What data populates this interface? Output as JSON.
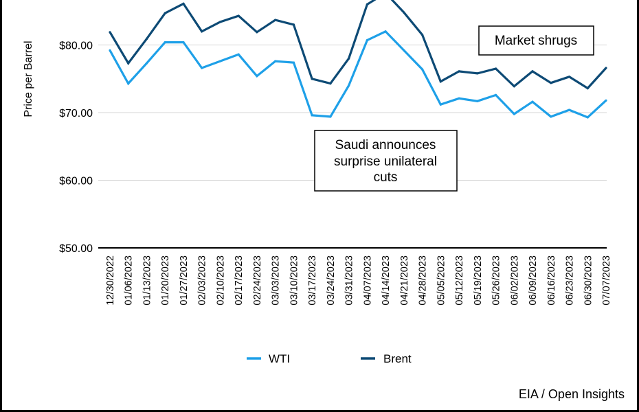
{
  "chart_data": {
    "type": "line",
    "title": "",
    "xlabel": "",
    "ylabel": "Price per Barrel",
    "ylim": [
      50,
      80
    ],
    "yticks": [
      "$50.00",
      "$60.00",
      "$70.00",
      "$80.00"
    ],
    "ytick_values": [
      50,
      60,
      70,
      80
    ],
    "grid": true,
    "legend_position": "bottom",
    "categories": [
      "12/30/2022",
      "01/06/2023",
      "01/13/2023",
      "01/20/2023",
      "01/27/2023",
      "02/03/2023",
      "02/10/2023",
      "02/17/2023",
      "02/24/2023",
      "03/03/2023",
      "03/10/2023",
      "03/17/2023",
      "03/24/2023",
      "03/31/2023",
      "04/07/2023",
      "04/14/2023",
      "04/21/2023",
      "04/28/2023",
      "05/05/2023",
      "05/12/2023",
      "05/19/2023",
      "05/26/2023",
      "06/02/2023",
      "06/09/2023",
      "06/16/2023",
      "06/23/2023",
      "06/30/2023",
      "07/07/2023"
    ],
    "series": [
      {
        "name": "WTI",
        "color": "#1ea0e8",
        "values": [
          79.2,
          74.3,
          77.3,
          80.4,
          80.4,
          76.6,
          77.6,
          78.6,
          75.4,
          77.6,
          77.4,
          69.6,
          69.4,
          74.0,
          80.7,
          82.0,
          79.2,
          76.4,
          71.2,
          72.1,
          71.7,
          72.6,
          69.8,
          71.6,
          69.4,
          70.4,
          69.3,
          71.8
        ]
      },
      {
        "name": "Brent",
        "color": "#0d4a75",
        "values": [
          81.9,
          77.3,
          80.9,
          84.7,
          86.1,
          82.0,
          83.4,
          84.3,
          81.9,
          83.7,
          83.0,
          75.0,
          74.3,
          78.0,
          86.0,
          87.7,
          84.8,
          81.5,
          74.6,
          76.1,
          75.8,
          76.5,
          73.9,
          76.1,
          74.4,
          75.3,
          73.6,
          76.6
        ]
      }
    ],
    "annotations": [
      "Market shrugs",
      "Saudi announces surprise unilateral cuts"
    ],
    "source": "EIA / Open Insights"
  },
  "annotation_market": "Market shrugs",
  "annotation_saudi_lines": [
    "Saudi announces",
    "surprise unilateral",
    "cuts"
  ],
  "source_text": "EIA / Open Insights"
}
